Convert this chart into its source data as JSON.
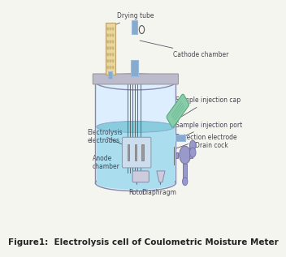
{
  "title": "Figure1:  Electrolysis cell of Coulometric Moisture Meter",
  "title_fontsize": 7.5,
  "title_bold": true,
  "bg_color": "#f5f5f0",
  "labels": {
    "drying_tube": "Drying tube",
    "cathode_chamber": "Cathode chamber",
    "sample_injection_cap": "Sample injection cap",
    "sample_injection_port": "Sample injection port",
    "detection_electrode": "Detection electrode",
    "drain_cock": "Drain cock",
    "electrolysis_electrodes": "Electrolysis\nelectrodes",
    "anode_chamber": "Anode\nchamber",
    "rotor": "Rotor",
    "diaphragm": "Diaphragm"
  },
  "colors": {
    "main_vessel_outline": "#8888aa",
    "vessel_fill": "#ddeeff",
    "liquid_fill": "#aaddee",
    "liquid_fill2": "#88ccdd",
    "lid_color": "#bbbbcc",
    "drying_tube_fill": "#e8d8a0",
    "drying_tube_outline": "#b8a070",
    "cathode_blue": "#88aacc",
    "cathode_blue2": "#99bbdd",
    "sample_cap_fill": "#88ccaa",
    "drain_cock_fill": "#9999cc",
    "drain_cock_outline": "#7777aa",
    "electrode_gray": "#999999",
    "electrode_dark": "#666666",
    "anode_box_fill": "#ccddee",
    "anode_box_outline": "#8899aa",
    "wire_color": "#555555",
    "text_color": "#333333",
    "label_color": "#444455",
    "arrow_color": "#555566",
    "bg_color": "#f5f5f0"
  }
}
